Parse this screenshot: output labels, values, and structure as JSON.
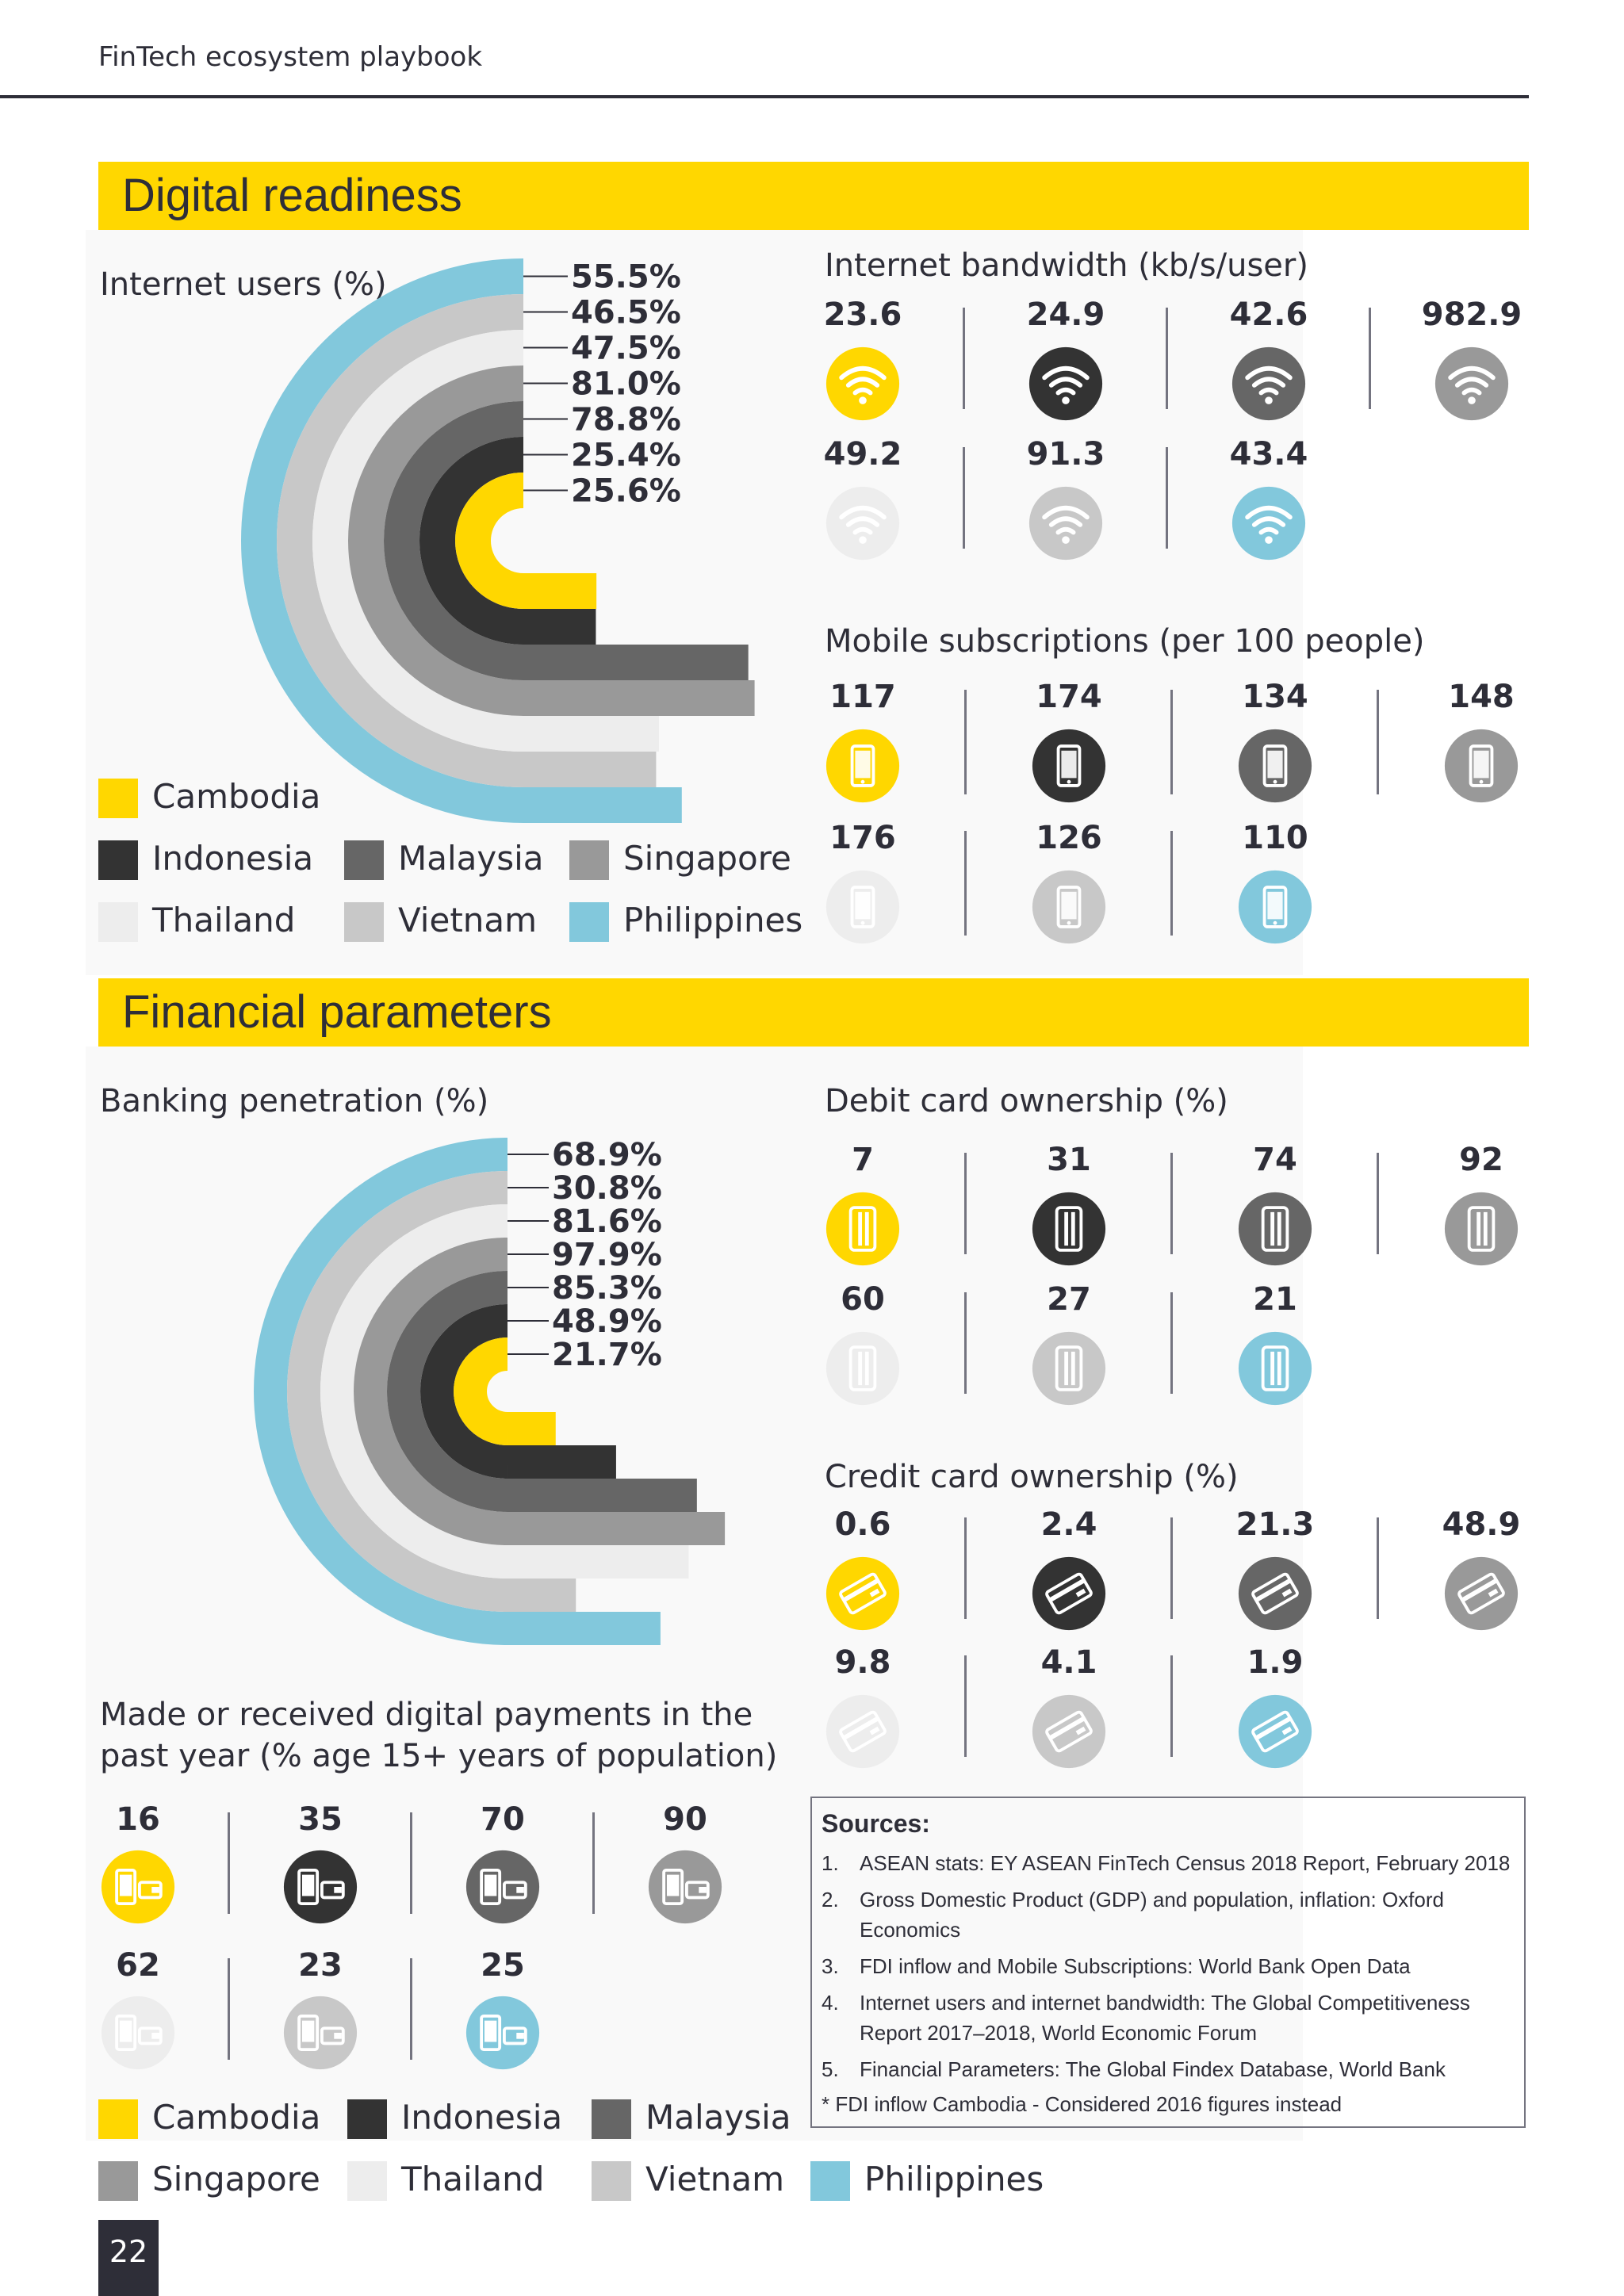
{
  "header": {
    "title": "FinTech ecosystem playbook"
  },
  "page_number": "22",
  "colors": {
    "Cambodia": "#ffd700",
    "Indonesia": "#333333",
    "Malaysia": "#666666",
    "Singapore": "#999999",
    "Thailand": "#ededed",
    "Vietnam": "#c8c8c8",
    "Philippines": "#82c8dc"
  },
  "sections": {
    "digital": "Digital readiness",
    "financial": "Financial parameters"
  },
  "labels": {
    "internet_users": "Internet users (%)",
    "bandwidth": "Internet bandwidth (kb/s/user)",
    "mobile": "Mobile subscriptions (per 100 people)",
    "banking": "Banking penetration (%)",
    "debit": "Debit card ownership (%)",
    "credit": "Credit card ownership (%)",
    "payments_line1": "Made or received digital payments in the",
    "payments_line2": "past year (% age 15+ years of population)"
  },
  "legend1": [
    {
      "name": "Cambodia",
      "color": "#ffd700"
    },
    {
      "name": "Indonesia",
      "color": "#333333"
    },
    {
      "name": "Malaysia",
      "color": "#666666"
    },
    {
      "name": "Singapore",
      "color": "#999999"
    },
    {
      "name": "Thailand",
      "color": "#ededed"
    },
    {
      "name": "Vietnam",
      "color": "#c8c8c8"
    },
    {
      "name": "Philippines",
      "color": "#82c8dc"
    }
  ],
  "legend2": [
    {
      "name": "Cambodia",
      "color": "#ffd700"
    },
    {
      "name": "Indonesia",
      "color": "#333333"
    },
    {
      "name": "Malaysia",
      "color": "#666666"
    },
    {
      "name": "Singapore",
      "color": "#999999"
    },
    {
      "name": "Thailand",
      "color": "#ededed"
    },
    {
      "name": "Vietnam",
      "color": "#c8c8c8"
    },
    {
      "name": "Philippines",
      "color": "#82c8dc"
    }
  ],
  "chart_data": [
    {
      "type": "radial-bar",
      "title": "Internet users (%)",
      "series": [
        "Philippines",
        "Vietnam",
        "Thailand",
        "Singapore",
        "Malaysia",
        "Indonesia",
        "Cambodia"
      ],
      "values": [
        55.5,
        46.5,
        47.5,
        81.0,
        78.8,
        25.4,
        25.6
      ],
      "labels": [
        "55.5%",
        "46.5%",
        "47.5%",
        "81.0%",
        "78.8%",
        "25.4%",
        "25.6%"
      ]
    },
    {
      "type": "icon-grid",
      "title": "Internet bandwidth (kb/s/user)",
      "series": [
        "Cambodia",
        "Indonesia",
        "Malaysia",
        "Singapore",
        "Thailand",
        "Vietnam",
        "Philippines"
      ],
      "values": [
        "23.6",
        "24.9",
        "42.6",
        "982.9",
        "49.2",
        "91.3",
        "43.4"
      ]
    },
    {
      "type": "icon-grid",
      "title": "Mobile subscriptions (per 100 people)",
      "series": [
        "Cambodia",
        "Indonesia",
        "Malaysia",
        "Singapore",
        "Thailand",
        "Vietnam",
        "Philippines"
      ],
      "values": [
        "117",
        "174",
        "134",
        "148",
        "176",
        "126",
        "110"
      ]
    },
    {
      "type": "radial-bar",
      "title": "Banking penetration (%)",
      "series": [
        "Philippines",
        "Vietnam",
        "Thailand",
        "Singapore",
        "Malaysia",
        "Indonesia",
        "Cambodia"
      ],
      "values": [
        68.9,
        30.8,
        81.6,
        97.9,
        85.3,
        48.9,
        21.7
      ],
      "labels": [
        "68.9%",
        "30.8%",
        "81.6%",
        "97.9%",
        "85.3%",
        "48.9%",
        "21.7%"
      ]
    },
    {
      "type": "icon-grid",
      "title": "Debit card ownership (%)",
      "series": [
        "Cambodia",
        "Indonesia",
        "Malaysia",
        "Singapore",
        "Thailand",
        "Vietnam",
        "Philippines"
      ],
      "values": [
        "7",
        "31",
        "74",
        "92",
        "60",
        "27",
        "21"
      ]
    },
    {
      "type": "icon-grid",
      "title": "Credit card ownership (%)",
      "series": [
        "Cambodia",
        "Indonesia",
        "Malaysia",
        "Singapore",
        "Thailand",
        "Vietnam",
        "Philippines"
      ],
      "values": [
        "0.6",
        "2.4",
        "21.3",
        "48.9",
        "9.8",
        "4.1",
        "1.9"
      ]
    },
    {
      "type": "icon-grid",
      "title": "Made or received digital payments in the past year (% age 15+ years of population)",
      "series": [
        "Cambodia",
        "Indonesia",
        "Malaysia",
        "Singapore",
        "Thailand",
        "Vietnam",
        "Philippines"
      ],
      "values": [
        "16",
        "35",
        "70",
        "90",
        "62",
        "23",
        "25"
      ]
    }
  ],
  "sources": {
    "title": "Sources:",
    "items": [
      {
        "num": "1.",
        "text": "ASEAN stats: EY ASEAN FinTech Census 2018 Report, February 2018"
      },
      {
        "num": "2.",
        "text": "Gross Domestic Product (GDP) and population, inflation: Oxford Economics"
      },
      {
        "num": "3.",
        "text": "FDI inflow and Mobile Subscriptions: World Bank Open Data"
      },
      {
        "num": "4.",
        "text": "Internet users and internet bandwidth: The Global Competitiveness Report 2017–2018, World Economic Forum"
      },
      {
        "num": "5.",
        "text": "Financial Parameters: The Global Findex Database, World Bank"
      }
    ],
    "note": "* FDI inflow Cambodia - Considered 2016 figures instead"
  }
}
